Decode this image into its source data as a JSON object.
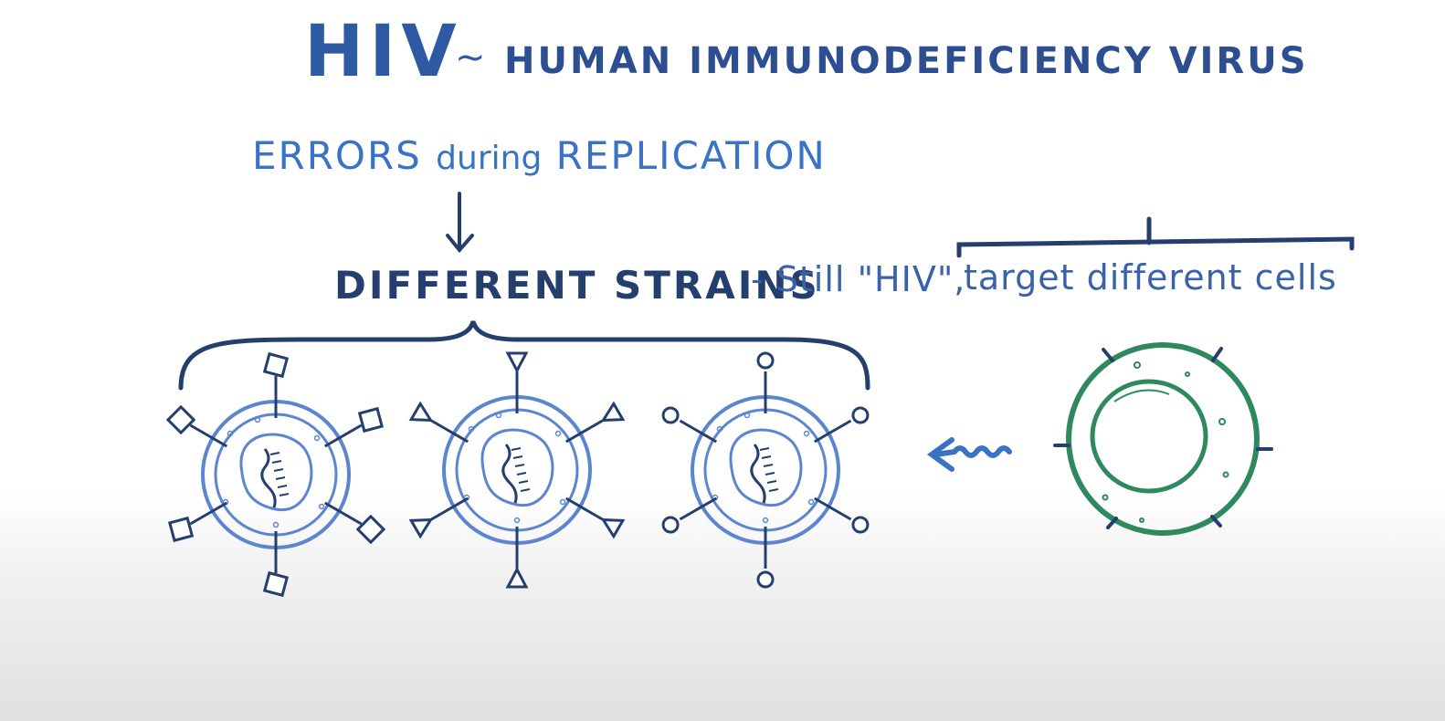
{
  "title": {
    "abbr": "HIV",
    "tilde": "~",
    "full": "HUMAN IMMUNODEFICIENCY VIRUS"
  },
  "errors": {
    "word1": "ERRORS",
    "word2": "during",
    "word3": "REPLICATION"
  },
  "strains": {
    "label": "DIFFERENT STRAINS",
    "dash_note": "- Still \"HIV\",",
    "targets": "target different cells"
  },
  "colors": {
    "virus": "#5b86cf",
    "receptor": "#243f6e",
    "cell": "#2e8a5e",
    "bracket": "#243f6e",
    "arrow": "#3a73c4"
  },
  "virus_strains": [
    {
      "receptor_shape": "square"
    },
    {
      "receptor_shape": "triangle"
    },
    {
      "receptor_shape": "circle"
    }
  ]
}
